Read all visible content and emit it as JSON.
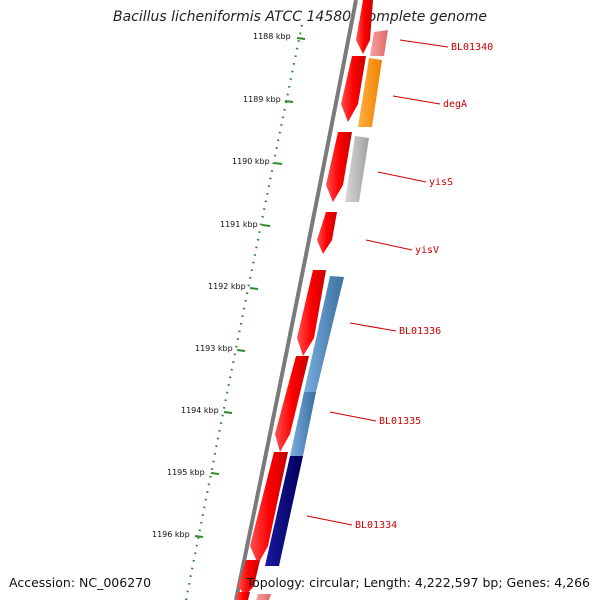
{
  "title": "Bacillus licheniformis ATCC 14580, complete genome",
  "accession": "Accession: NC_006270",
  "summary": "Topology: circular; Length: 4,222,597 bp; Genes: 4,266",
  "colors": {
    "backbone": "#808080",
    "tick": "#2e8b2e",
    "forward_gene": "#ff0000",
    "label": "#cc0000"
  },
  "kbp_labels": [
    "1188 kbp",
    "1189 kbp",
    "1190 kbp",
    "1191 kbp",
    "1192 kbp",
    "1193 kbp",
    "1194 kbp",
    "1195 kbp",
    "1196 kbp"
  ],
  "gene_labels": [
    {
      "name": "BL01340",
      "color": "#f08080"
    },
    {
      "name": "degA",
      "color": "#ff8c00"
    },
    {
      "name": "yisS",
      "color": "#b0b0b0"
    },
    {
      "name": "yisV",
      "color": "#ff0000"
    },
    {
      "name": "BL01336",
      "color": "#4682b4"
    },
    {
      "name": "BL01335",
      "color": "#4682b4"
    },
    {
      "name": "BL01334",
      "color": "#000080"
    }
  ]
}
